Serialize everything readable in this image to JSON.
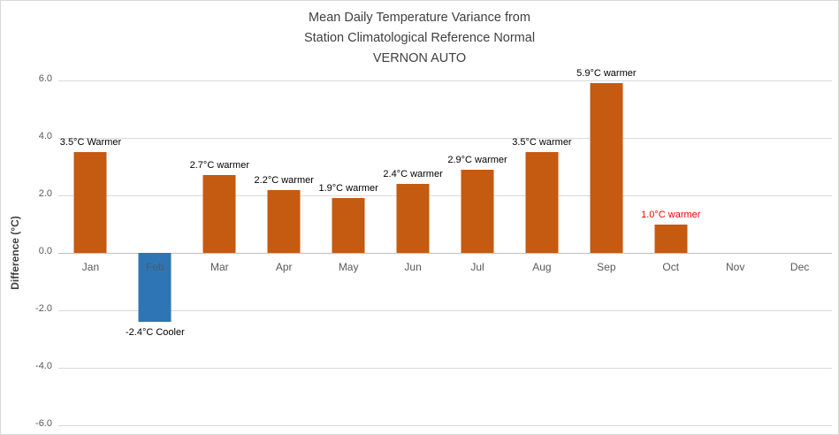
{
  "title": {
    "line1": "Mean Daily Temperature Variance from",
    "line2": "Station Climatological Reference Normal",
    "line3": "VERNON AUTO"
  },
  "y_axis_label": "Difference (°C)",
  "chart_data": {
    "type": "bar",
    "title": "Mean Daily Temperature Variance from Station Climatological Reference Normal VERNON AUTO",
    "categories": [
      "Jan",
      "Feb",
      "Mar",
      "Apr",
      "May",
      "Jun",
      "Jul",
      "Aug",
      "Sep",
      "Oct",
      "Nov",
      "Dec"
    ],
    "values": [
      3.5,
      -2.4,
      2.7,
      2.2,
      1.9,
      2.4,
      2.9,
      3.5,
      5.9,
      1.0,
      null,
      null
    ],
    "bar_labels": [
      "3.5°C Warmer",
      "-2.4°C Cooler",
      "2.7°C warmer",
      "2.2°C warmer",
      "1.9°C warmer",
      "2.4°C warmer",
      "2.9°C warmer",
      "3.5°C warmer",
      "5.9°C warmer",
      "1.0°C warmer",
      "",
      ""
    ],
    "bar_label_colors": [
      "#000000",
      "#000000",
      "#000000",
      "#000000",
      "#000000",
      "#000000",
      "#000000",
      "#000000",
      "#000000",
      "#FF0000",
      "#000000",
      "#000000"
    ],
    "positive_color": "#C55A11",
    "negative_color": "#2E75B6",
    "ylabel": "Difference (°C)",
    "ylim": [
      -6,
      6
    ],
    "ytick_labels": [
      "6.0",
      "4.0",
      "2.0",
      "0.0",
      "-2.0",
      "-4.0",
      "-6.0"
    ],
    "grid": true,
    "gridline_color": "#D9D9D9",
    "zero_line_color": "#BFBFBF",
    "legend": "none"
  }
}
